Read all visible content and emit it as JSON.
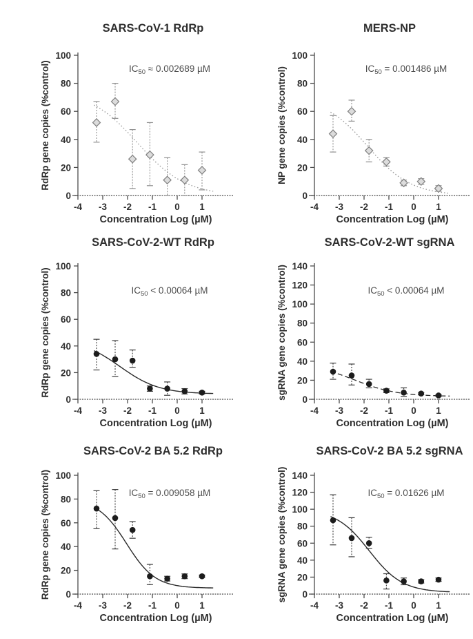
{
  "figure": {
    "background": "#ffffff",
    "text_color": "#2e2e2e",
    "annotation_color": "#4d4d4d",
    "axis_color": "#4a4a4a",
    "open_marker_fill": "#dcdcdc",
    "open_marker_stroke": "#808080",
    "open_errorbar_color": "#8f8f8f",
    "filled_marker_color": "#1c1c1c",
    "filled_errorbar_color": "#3a3a3a",
    "dotted_curve_color": "#9c9c9c",
    "solid_curve_color": "#2a2a2a"
  },
  "chart_data": [
    {
      "type": "scatter",
      "title": "SARS-CoV-1 RdRp",
      "ic50": {
        "prefix": "IC",
        "sub": "50",
        "value": " ≈ 0.002689 µM"
      },
      "ylabel": "RdRp gene copies (%control)",
      "xlabel": "Concentration Log (µM)",
      "xlim": [
        -4,
        1.6
      ],
      "ylim": [
        0,
        100
      ],
      "xticks": [
        -4,
        -3,
        -2,
        -1,
        0,
        1
      ],
      "yticks": [
        0,
        20,
        40,
        60,
        80,
        100
      ],
      "marker": "open-diamond",
      "curve_style": "dotted",
      "grid": false,
      "points": [
        {
          "x": -3.25,
          "y": 52,
          "lo": 38,
          "hi": 67
        },
        {
          "x": -2.5,
          "y": 67,
          "lo": 55,
          "hi": 80
        },
        {
          "x": -1.8,
          "y": 26,
          "lo": 5,
          "hi": 47
        },
        {
          "x": -1.1,
          "y": 29,
          "lo": 7,
          "hi": 52
        },
        {
          "x": -0.4,
          "y": 11,
          "lo": 0,
          "hi": 27
        },
        {
          "x": 0.3,
          "y": 11,
          "lo": 0,
          "hi": 22
        },
        {
          "x": 1.0,
          "y": 18,
          "lo": 4,
          "hi": 31
        }
      ],
      "fit": {
        "top": 75,
        "bottom": 0,
        "log_ic50": -1.6,
        "hill": 0.45
      }
    },
    {
      "type": "scatter",
      "title": "MERS-NP",
      "ic50": {
        "prefix": "IC",
        "sub": "50",
        "value": " = 0.001486 µM"
      },
      "ylabel": "NP gene copies (%control)",
      "xlabel": "Concentration Log (µM)",
      "xlim": [
        -4,
        1.6
      ],
      "ylim": [
        0,
        100
      ],
      "xticks": [
        -4,
        -3,
        -2,
        -1,
        0,
        1
      ],
      "yticks": [
        0,
        20,
        40,
        60,
        80,
        100
      ],
      "marker": "open-diamond",
      "curve_style": "dotted",
      "grid": false,
      "points": [
        {
          "x": -3.25,
          "y": 44,
          "lo": 31,
          "hi": 57
        },
        {
          "x": -2.5,
          "y": 60,
          "lo": 53,
          "hi": 68
        },
        {
          "x": -1.8,
          "y": 32,
          "lo": 24,
          "hi": 40
        },
        {
          "x": -1.1,
          "y": 24,
          "lo": 21,
          "hi": 27
        },
        {
          "x": -0.4,
          "y": 9,
          "lo": 7,
          "hi": 11
        },
        {
          "x": 0.3,
          "y": 10,
          "lo": 8,
          "hi": 12
        },
        {
          "x": 1.0,
          "y": 5,
          "lo": 3,
          "hi": 7
        }
      ],
      "fit": {
        "top": 70,
        "bottom": 0,
        "log_ic50": -1.85,
        "hill": 0.5
      }
    },
    {
      "type": "scatter",
      "title": "SARS-CoV-2-WT RdRp",
      "ic50": {
        "prefix": "IC",
        "sub": "50",
        "value": " < 0.00064 µM"
      },
      "ylabel": "RdRp gene copies (%control)",
      "xlabel": "Concentration Log (µM)",
      "xlim": [
        -4,
        1.6
      ],
      "ylim": [
        0,
        100
      ],
      "xticks": [
        -4,
        -3,
        -2,
        -1,
        0,
        1
      ],
      "yticks": [
        0,
        20,
        40,
        60,
        80,
        100
      ],
      "marker": "filled-circle",
      "curve_style": "solid",
      "grid": false,
      "points": [
        {
          "x": -3.25,
          "y": 34,
          "lo": 22,
          "hi": 45
        },
        {
          "x": -2.5,
          "y": 30,
          "lo": 17,
          "hi": 44
        },
        {
          "x": -1.8,
          "y": 29,
          "lo": 24,
          "hi": 37
        },
        {
          "x": -1.1,
          "y": 8,
          "lo": 6,
          "hi": 10
        },
        {
          "x": -0.4,
          "y": 8,
          "lo": 3,
          "hi": 13
        },
        {
          "x": 0.3,
          "y": 6,
          "lo": 4,
          "hi": 8
        },
        {
          "x": 1.0,
          "y": 5,
          "lo": 4,
          "hi": 6
        }
      ],
      "fit": {
        "top": 45,
        "bottom": 4,
        "log_ic50": -2.3,
        "hill": 0.55
      }
    },
    {
      "type": "scatter",
      "title": "SARS-CoV-2-WT sgRNA",
      "ic50": {
        "prefix": "IC",
        "sub": "50",
        "value": " < 0.00064 µM"
      },
      "ylabel": "sgRNA gene copies (%control)",
      "xlabel": "Concentration Log (µM)",
      "xlim": [
        -4,
        1.6
      ],
      "ylim": [
        0,
        140
      ],
      "xticks": [
        -4,
        -3,
        -2,
        -1,
        0,
        1
      ],
      "yticks": [
        0,
        20,
        40,
        60,
        80,
        100,
        120,
        140
      ],
      "marker": "filled-circle",
      "curve_style": "dashed",
      "grid": false,
      "points": [
        {
          "x": -3.25,
          "y": 29,
          "lo": 21,
          "hi": 38
        },
        {
          "x": -2.5,
          "y": 25,
          "lo": 15,
          "hi": 37
        },
        {
          "x": -1.8,
          "y": 16,
          "lo": 12,
          "hi": 21
        },
        {
          "x": -1.1,
          "y": 9,
          "lo": 7,
          "hi": 11
        },
        {
          "x": -0.4,
          "y": 7,
          "lo": 3,
          "hi": 12
        },
        {
          "x": 0.3,
          "y": 6,
          "lo": 5,
          "hi": 7
        },
        {
          "x": 1.0,
          "y": 4,
          "lo": 3,
          "hi": 5
        }
      ],
      "fit": {
        "top": 38,
        "bottom": 3,
        "log_ic50": -2.4,
        "hill": 0.5
      }
    },
    {
      "type": "scatter",
      "title": "SARS-CoV-2 BA 5.2 RdRp",
      "ic50": {
        "prefix": "IC",
        "sub": "50",
        "value": " = 0.009058 µM"
      },
      "ylabel": "RdRp gene copies (%control)",
      "xlabel": "Concentration Log (µM)",
      "xlim": [
        -4,
        1.6
      ],
      "ylim": [
        0,
        100
      ],
      "xticks": [
        -4,
        -3,
        -2,
        -1,
        0,
        1
      ],
      "yticks": [
        0,
        20,
        40,
        60,
        80,
        100
      ],
      "marker": "filled-circle",
      "curve_style": "solid",
      "grid": false,
      "points": [
        {
          "x": -3.25,
          "y": 72,
          "lo": 55,
          "hi": 87
        },
        {
          "x": -2.5,
          "y": 64,
          "lo": 38,
          "hi": 88
        },
        {
          "x": -1.8,
          "y": 54,
          "lo": 47,
          "hi": 61
        },
        {
          "x": -1.1,
          "y": 15,
          "lo": 8,
          "hi": 25
        },
        {
          "x": -0.4,
          "y": 13,
          "lo": 11,
          "hi": 15
        },
        {
          "x": 0.3,
          "y": 15,
          "lo": 13,
          "hi": 17
        },
        {
          "x": 1.0,
          "y": 15,
          "lo": 14,
          "hi": 16
        }
      ],
      "fit": {
        "top": 80,
        "bottom": 5,
        "log_ic50": -2.04,
        "hill": 0.75
      }
    },
    {
      "type": "scatter",
      "title": "SARS-CoV-2 BA 5.2 sgRNA",
      "ic50": {
        "prefix": "IC",
        "sub": "50",
        "value": " = 0.01626 µM"
      },
      "ylabel": "sgRNA gene copies (%control)",
      "xlabel": "Concentration Log (µM)",
      "xlim": [
        -4,
        1.6
      ],
      "ylim": [
        0,
        140
      ],
      "xticks": [
        -4,
        -3,
        -2,
        -1,
        0,
        1
      ],
      "yticks": [
        0,
        20,
        40,
        60,
        80,
        100,
        120,
        140
      ],
      "marker": "filled-circle",
      "curve_style": "solid",
      "grid": false,
      "points": [
        {
          "x": -3.25,
          "y": 87,
          "lo": 58,
          "hi": 117
        },
        {
          "x": -2.5,
          "y": 66,
          "lo": 44,
          "hi": 90
        },
        {
          "x": -1.8,
          "y": 60,
          "lo": 54,
          "hi": 67
        },
        {
          "x": -1.1,
          "y": 16,
          "lo": 6,
          "hi": 24
        },
        {
          "x": -0.4,
          "y": 15,
          "lo": 11,
          "hi": 19
        },
        {
          "x": 0.3,
          "y": 15,
          "lo": 13,
          "hi": 17
        },
        {
          "x": 1.0,
          "y": 17,
          "lo": 15,
          "hi": 19
        }
      ],
      "fit": {
        "top": 100,
        "bottom": 2,
        "log_ic50": -1.79,
        "hill": 0.65
      }
    }
  ]
}
